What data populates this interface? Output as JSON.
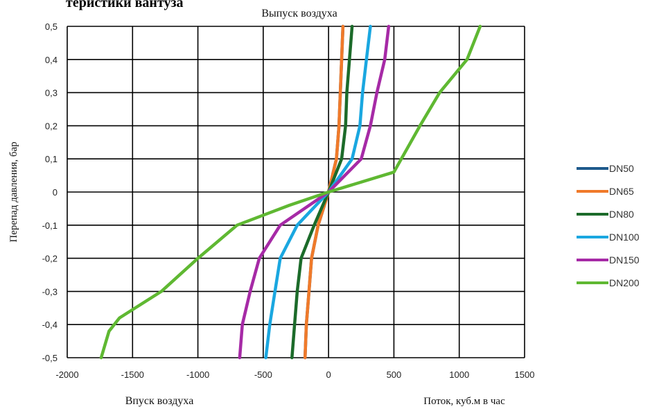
{
  "page": {
    "cut_heading": "теристики вантуза",
    "top_label": "Выпуск воздуха",
    "bottom_left_label": "Впуск воздуха",
    "bottom_right_label": "Поток, куб.м в час",
    "ylabel": "Перепад давления, бар"
  },
  "chart_data": {
    "type": "line",
    "title": "",
    "xlabel": "Поток, куб.м в час",
    "ylabel": "Перепад давления, бар",
    "xlim": [
      -2000,
      1500
    ],
    "ylim": [
      -0.5,
      0.5
    ],
    "x_ticks": [
      -2000,
      -1500,
      -1000,
      -500,
      0,
      500,
      1000,
      1500
    ],
    "x_tick_labels": [
      "-2000",
      "-1500",
      "-1000",
      "-500",
      "0",
      "500",
      "1000",
      "1500"
    ],
    "y_ticks": [
      0.5,
      0.4,
      0.3,
      0.2,
      0.1,
      0,
      -0.1,
      -0.2,
      -0.3,
      -0.4,
      -0.5
    ],
    "y_tick_labels": [
      "0,5",
      "0,4",
      "0,3",
      "0,2",
      "0,1",
      "0",
      "-0,1",
      "-0,2",
      "-0,3",
      "-0,4",
      "-0,5"
    ],
    "grid": true,
    "legend_position": "right",
    "series": [
      {
        "name": "DN50",
        "color": "#1f5a8c",
        "points": [
          [
            -180,
            -0.5
          ],
          [
            -170,
            -0.4
          ],
          [
            -150,
            -0.3
          ],
          [
            -130,
            -0.2
          ],
          [
            -80,
            -0.1
          ],
          [
            0,
            0
          ],
          [
            60,
            0.1
          ],
          [
            80,
            0.2
          ],
          [
            90,
            0.3
          ],
          [
            100,
            0.4
          ],
          [
            110,
            0.5
          ]
        ]
      },
      {
        "name": "DN65",
        "color": "#f07a2a",
        "points": [
          [
            -180,
            -0.5
          ],
          [
            -170,
            -0.4
          ],
          [
            -150,
            -0.3
          ],
          [
            -130,
            -0.2
          ],
          [
            -80,
            -0.1
          ],
          [
            0,
            0
          ],
          [
            60,
            0.1
          ],
          [
            80,
            0.2
          ],
          [
            90,
            0.3
          ],
          [
            100,
            0.4
          ],
          [
            110,
            0.5
          ]
        ]
      },
      {
        "name": "DN80",
        "color": "#1c6b2a",
        "points": [
          [
            -280,
            -0.5
          ],
          [
            -260,
            -0.4
          ],
          [
            -240,
            -0.3
          ],
          [
            -210,
            -0.2
          ],
          [
            -110,
            -0.1
          ],
          [
            0,
            0
          ],
          [
            100,
            0.1
          ],
          [
            130,
            0.2
          ],
          [
            140,
            0.3
          ],
          [
            160,
            0.4
          ],
          [
            180,
            0.5
          ]
        ]
      },
      {
        "name": "DN100",
        "color": "#1aa7e0",
        "points": [
          [
            -480,
            -0.5
          ],
          [
            -450,
            -0.4
          ],
          [
            -410,
            -0.3
          ],
          [
            -370,
            -0.2
          ],
          [
            -240,
            -0.1
          ],
          [
            0,
            0
          ],
          [
            180,
            0.1
          ],
          [
            240,
            0.2
          ],
          [
            260,
            0.3
          ],
          [
            290,
            0.4
          ],
          [
            320,
            0.5
          ]
        ]
      },
      {
        "name": "DN150",
        "color": "#a62aa6",
        "points": [
          [
            -680,
            -0.5
          ],
          [
            -660,
            -0.4
          ],
          [
            -600,
            -0.3
          ],
          [
            -530,
            -0.2
          ],
          [
            -370,
            -0.1
          ],
          [
            0,
            0
          ],
          [
            250,
            0.1
          ],
          [
            320,
            0.2
          ],
          [
            370,
            0.3
          ],
          [
            430,
            0.4
          ],
          [
            460,
            0.5
          ]
        ]
      },
      {
        "name": "DN200",
        "color": "#5fb832",
        "points": [
          [
            -1740,
            -0.5
          ],
          [
            -1680,
            -0.42
          ],
          [
            -1600,
            -0.38
          ],
          [
            -1280,
            -0.3
          ],
          [
            -1000,
            -0.2
          ],
          [
            -700,
            -0.1
          ],
          [
            -300,
            -0.04
          ],
          [
            0,
            0
          ],
          [
            500,
            0.06
          ],
          [
            700,
            0.2
          ],
          [
            850,
            0.3
          ],
          [
            1060,
            0.4
          ],
          [
            1160,
            0.5
          ]
        ]
      }
    ]
  }
}
